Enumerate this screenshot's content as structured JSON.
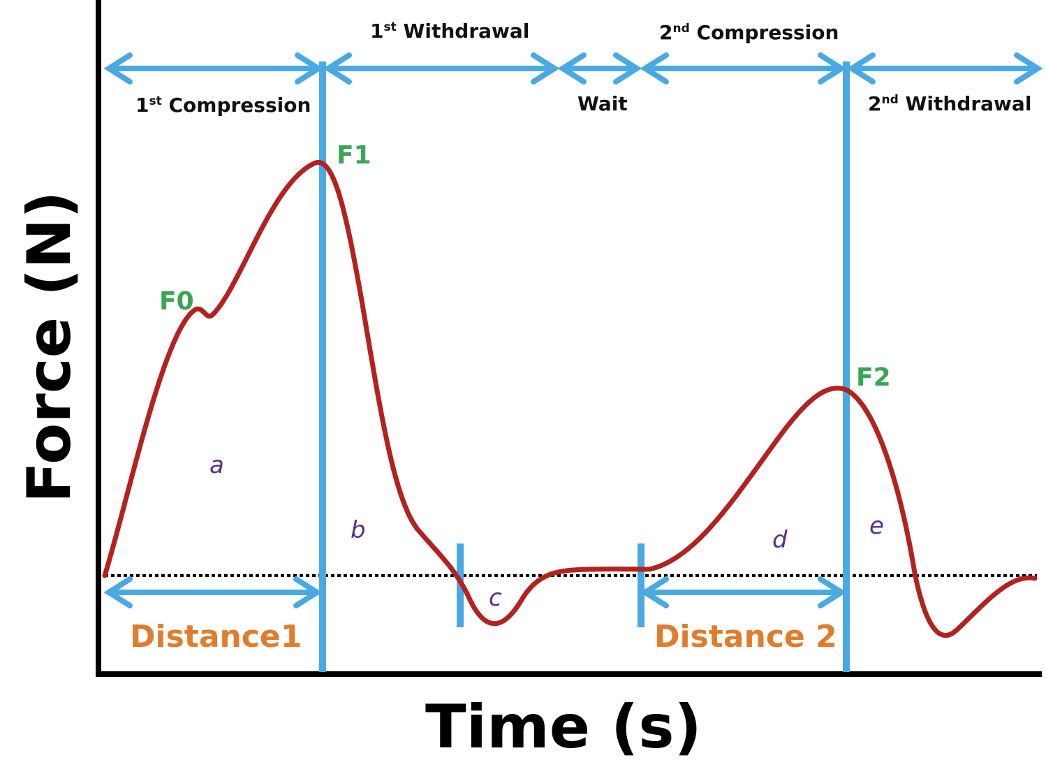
{
  "colors": {
    "curve": "#b3221e",
    "guide": "#4aa9e3",
    "axis": "#000000",
    "peak_label": "#3aa653",
    "area_label": "#5a2d8c",
    "distance_label": "#e07d2c"
  },
  "axes": {
    "y_title": "Force (N)",
    "x_title": "Time (s)"
  },
  "phases": {
    "first_compression": {
      "num": "1",
      "sup": "st",
      "text": " Compression"
    },
    "first_withdrawal": {
      "num": "1",
      "sup": "st",
      "text": " Withdrawal"
    },
    "wait": "Wait",
    "second_compression": {
      "num": "2",
      "sup": "nd",
      "text": " Compression"
    },
    "second_withdrawal": {
      "num": "2",
      "sup": "nd",
      "text": " Withdrawal"
    }
  },
  "peaks": {
    "f0": "F0",
    "f1": "F1",
    "f2": "F2"
  },
  "areas": {
    "a": "a",
    "b": "b",
    "c": "c",
    "d": "d",
    "e": "e"
  },
  "distances": {
    "d1": "Distance1",
    "d2": "Distance 2"
  }
}
